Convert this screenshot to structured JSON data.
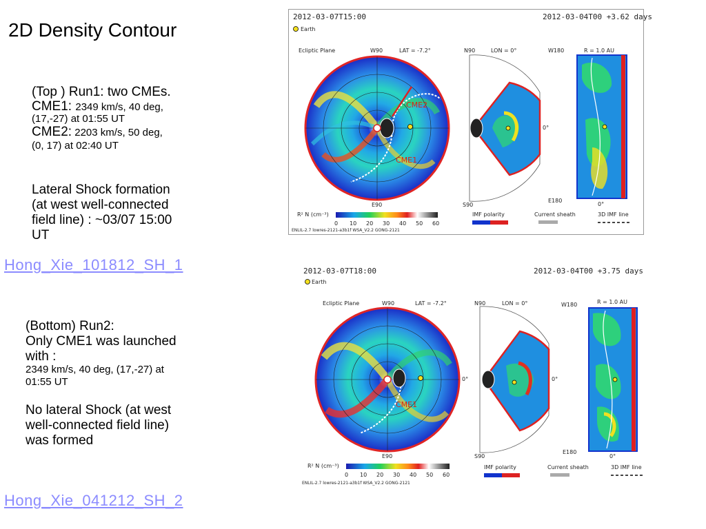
{
  "slide": {
    "title": "2D Density Contour",
    "top_block": {
      "line1": "(Top ) Run1:  two CMEs.",
      "cme1_label": "CME1: ",
      "cme1_detail": "2349 km/s, 40 deg,",
      "cme1_detail2": "(17,-27) at 01:55 UT",
      "cme2_label": "CME2:",
      "cme2_detail": " 2203 km/s, 50 deg,",
      "cme2_detail2": "(0, 17) at 02:40 UT",
      "shock_line1": "Lateral Shock formation",
      "shock_line2": "(at west well-connected",
      "shock_line3": "field line) : ~03/07 15:00",
      "shock_line4": "UT"
    },
    "link1": "Hong_Xie_101812_SH_1",
    "bottom_block": {
      "line1": "(Bottom) Run2:",
      "line2": "Only CME1 was launched",
      "line3": "with :",
      "detail1": "2349 km/s, 40 deg, (17,-27) at",
      "detail2": "01:55 UT",
      "noshock1": "No lateral Shock (at west",
      "noshock2": "well-connected field line)",
      "noshock3": "was formed"
    },
    "link2": "Hong_Xie_041212_SH_2"
  },
  "panels": {
    "top": {
      "time_left": "2012-03-07T15:00",
      "time_right": "2012-03-04T00 +3.62 days",
      "earth": "Earth",
      "ecliptic": "Ecliptic Plane",
      "w90": "W90",
      "lat": "LAT = -7.2°",
      "n90": "N90",
      "lon": "LON = 0°",
      "w180": "W180",
      "r": "R = 1.0 AU",
      "e90": "E90",
      "s90": "S90",
      "e180": "E180",
      "zero": "0°",
      "cme2": "CME2",
      "cme1": "CME1",
      "colorbar": "R² N (cm⁻³)",
      "ticks": [
        "0",
        "10",
        "20",
        "30",
        "40",
        "50",
        "60"
      ],
      "imf": "IMF polarity",
      "sheath": "Current sheath",
      "imfline": "3D IMF line",
      "footer": "ENLIL-2.7 lowres-2121-a3b1f WSA_V2.2 GONG-2121"
    },
    "bottom": {
      "time_left": "2012-03-07T18:00",
      "time_right": "2012-03-04T00 +3.75 days",
      "earth": "Earth",
      "ecliptic": "Ecliptic Plane",
      "w90": "W90",
      "lat": "LAT = -7.2°",
      "n90": "N90",
      "lon": "LON = 0°",
      "w180": "W180",
      "r": "R = 1.0 AU",
      "e90": "E90",
      "s90": "S90",
      "e180": "E180",
      "zero": "0°",
      "cme1": "CME1",
      "colorbar": "R² N (cm⁻³)",
      "ticks": [
        "0",
        "10",
        "20",
        "30",
        "40",
        "50",
        "60"
      ],
      "imf": "IMF polarity",
      "sheath": "Current sheath",
      "imfline": "3D IMF line",
      "footer": "ENLIL-2.7 lowres-2121-a3b1f WSA_V2.2 GONG-2121"
    }
  },
  "colors": {
    "link": "#8b8bff",
    "red": "#dd2222",
    "blue": "#1133cc"
  }
}
